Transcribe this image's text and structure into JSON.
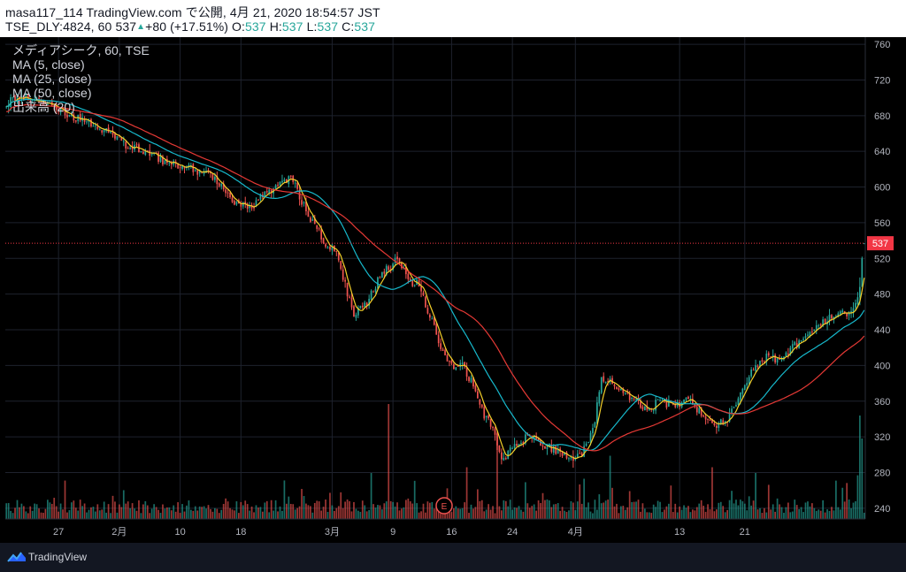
{
  "header": {
    "publisher": "masa117_114 TradingView.com で公開, 4月 21, 2020 18:54:57 JST",
    "symbol": "TSE_DLY:4824, 60",
    "last": "537",
    "change": "+80 (+17.51%)",
    "o_label": "O:",
    "o_value": "537",
    "h_label": "H:",
    "h_value": "537",
    "l_label": "L:",
    "l_value": "537",
    "c_label": "C:",
    "c_value": "537"
  },
  "legend": {
    "title": "メディアシーク, 60, TSE",
    "indicators": [
      "MA (5, close)",
      "MA (25, close)",
      "MA (50, close)",
      "出来高 (20)"
    ]
  },
  "footer": {
    "brand": "TradingView",
    "icon": "tradingview-logo-icon"
  },
  "earnings_marker": "E",
  "colors": {
    "up": "#26a69a",
    "down": "#ef5350",
    "ma5": "#f5d02a",
    "ma25": "#17b9cc",
    "ma50": "#e53935",
    "price_line": "#f23645",
    "background": "#000000",
    "grid": "#1e222d"
  },
  "chart_data": {
    "type": "candlestick",
    "symbol": "TSE_DLY:4824",
    "interval": "60",
    "y_axis": {
      "ticks": [
        240,
        280,
        320,
        360,
        400,
        440,
        480,
        520,
        560,
        600,
        640,
        680,
        720,
        760
      ],
      "range": [
        228,
        768
      ],
      "side": "right"
    },
    "x_axis": {
      "ticks": [
        "27",
        "2月",
        "10",
        "18",
        "3月",
        "9",
        "16",
        "24",
        "4月",
        "13",
        "21"
      ]
    },
    "last_price_label": "537",
    "price_anchors": [
      [
        0,
        695
      ],
      [
        10,
        700
      ],
      [
        22,
        690
      ],
      [
        30,
        680
      ],
      [
        40,
        670
      ],
      [
        48,
        660
      ],
      [
        55,
        648
      ],
      [
        62,
        640
      ],
      [
        72,
        630
      ],
      [
        80,
        625
      ],
      [
        88,
        618
      ],
      [
        95,
        610
      ],
      [
        100,
        600
      ],
      [
        105,
        585
      ],
      [
        112,
        575
      ],
      [
        118,
        590
      ],
      [
        125,
        600
      ],
      [
        131,
        610
      ],
      [
        140,
        565
      ],
      [
        146,
        540
      ],
      [
        152,
        525
      ],
      [
        156,
        490
      ],
      [
        160,
        455
      ],
      [
        166,
        470
      ],
      [
        172,
        500
      ],
      [
        180,
        520
      ],
      [
        186,
        495
      ],
      [
        190,
        490
      ],
      [
        195,
        455
      ],
      [
        200,
        420
      ],
      [
        205,
        398
      ],
      [
        210,
        400
      ],
      [
        216,
        375
      ],
      [
        220,
        345
      ],
      [
        224,
        330
      ],
      [
        228,
        295
      ],
      [
        232,
        305
      ],
      [
        240,
        320
      ],
      [
        248,
        310
      ],
      [
        256,
        300
      ],
      [
        260,
        295
      ],
      [
        264,
        300
      ],
      [
        268,
        315
      ],
      [
        271,
        340
      ],
      [
        274,
        385
      ],
      [
        278,
        382
      ],
      [
        284,
        370
      ],
      [
        290,
        360
      ],
      [
        296,
        350
      ],
      [
        300,
        360
      ],
      [
        308,
        355
      ],
      [
        314,
        360
      ],
      [
        320,
        345
      ],
      [
        326,
        330
      ],
      [
        332,
        340
      ],
      [
        338,
        370
      ],
      [
        344,
        395
      ],
      [
        350,
        410
      ],
      [
        356,
        405
      ],
      [
        362,
        420
      ],
      [
        368,
        430
      ],
      [
        374,
        445
      ],
      [
        380,
        455
      ],
      [
        386,
        458
      ],
      [
        390,
        462
      ],
      [
        393,
        488
      ],
      [
        394,
        522
      ],
      [
        395,
        537
      ]
    ],
    "volume_spikes": [
      {
        "bar": 176,
        "rel": 1.0
      },
      {
        "bar": 212,
        "rel": 0.45
      },
      {
        "bar": 226,
        "rel": 0.75
      },
      {
        "bar": 266,
        "rel": 0.35
      },
      {
        "bar": 278,
        "rel": 0.55
      },
      {
        "bar": 325,
        "rel": 0.45
      },
      {
        "bar": 345,
        "rel": 0.4
      },
      {
        "bar": 392,
        "rel": 0.38
      },
      {
        "bar": 393,
        "rel": 0.9
      },
      {
        "bar": 394,
        "rel": 0.7
      },
      {
        "bar": 168,
        "rel": 0.4
      }
    ],
    "moving_averages": [
      {
        "name": "MA (5, close)",
        "period": 5,
        "color": "#f5d02a"
      },
      {
        "name": "MA (25, close)",
        "period": 25,
        "color": "#17b9cc"
      },
      {
        "name": "MA (50, close)",
        "period": 50,
        "color": "#e53935"
      }
    ],
    "bar_count": 396
  }
}
